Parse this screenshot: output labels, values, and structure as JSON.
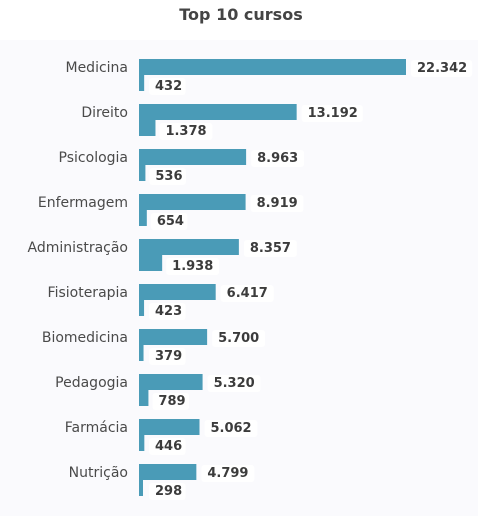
{
  "chart_data": {
    "type": "bar",
    "orientation": "horizontal",
    "title": "Top 10 cursos",
    "categories": [
      "Medicina",
      "Direito",
      "Psicologia",
      "Enfermagem",
      "Administração",
      "Fisioterapia",
      "Biomedicina",
      "Pedagogia",
      "Farmácia",
      "Nutrição"
    ],
    "series": [
      {
        "values": [
          22342,
          13192,
          8963,
          8919,
          8357,
          6417,
          5700,
          5320,
          5062,
          4799
        ],
        "labels": [
          "22.342",
          "13.192",
          "8.963",
          "8.919",
          "8.357",
          "6.417",
          "5.700",
          "5.320",
          "5.062",
          "4.799"
        ],
        "color": "#4a9bb7"
      },
      {
        "values": [
          432,
          1378,
          536,
          654,
          1938,
          423,
          379,
          789,
          446,
          298
        ],
        "labels": [
          "432",
          "1.378",
          "536",
          "654",
          "1.938",
          "423",
          "379",
          "789",
          "446",
          "298"
        ],
        "color": "#4a9bb7"
      }
    ],
    "xlim": [
      0,
      22342
    ],
    "grid": false,
    "legend": "none"
  }
}
